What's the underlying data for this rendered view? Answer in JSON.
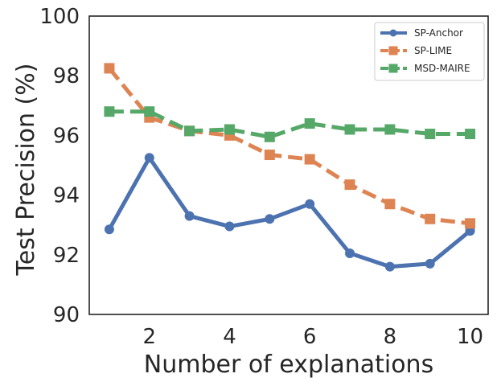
{
  "chart_data": {
    "type": "line",
    "title": "",
    "xlabel": "Number of explanations",
    "ylabel": "Test Precision (%)",
    "xlim": [
      0.5,
      10.45
    ],
    "ylim": [
      90,
      100
    ],
    "xticks": [
      2,
      4,
      6,
      8,
      10
    ],
    "yticks": [
      90,
      92,
      94,
      96,
      98,
      100
    ],
    "grid": false,
    "legend_position": "top-right",
    "x": [
      1,
      2,
      3,
      4,
      5,
      6,
      7,
      8,
      9,
      10
    ],
    "series": [
      {
        "name": "SP-Anchor",
        "color": "#4c72b0",
        "marker": "circle",
        "linestyle": "solid",
        "values": [
          92.85,
          95.25,
          93.3,
          92.95,
          93.2,
          93.7,
          92.05,
          91.6,
          91.7,
          92.8
        ]
      },
      {
        "name": "SP-LIME",
        "color": "#dd8452",
        "marker": "square",
        "linestyle": "dashed",
        "values": [
          98.25,
          96.6,
          96.15,
          96.0,
          95.35,
          95.2,
          94.35,
          93.7,
          93.2,
          93.05
        ]
      },
      {
        "name": "MSD-MAIRE",
        "color": "#55a868",
        "marker": "square",
        "linestyle": "dashed",
        "values": [
          96.8,
          96.8,
          96.15,
          96.2,
          95.95,
          96.4,
          96.2,
          96.2,
          96.05,
          96.05
        ]
      }
    ]
  }
}
